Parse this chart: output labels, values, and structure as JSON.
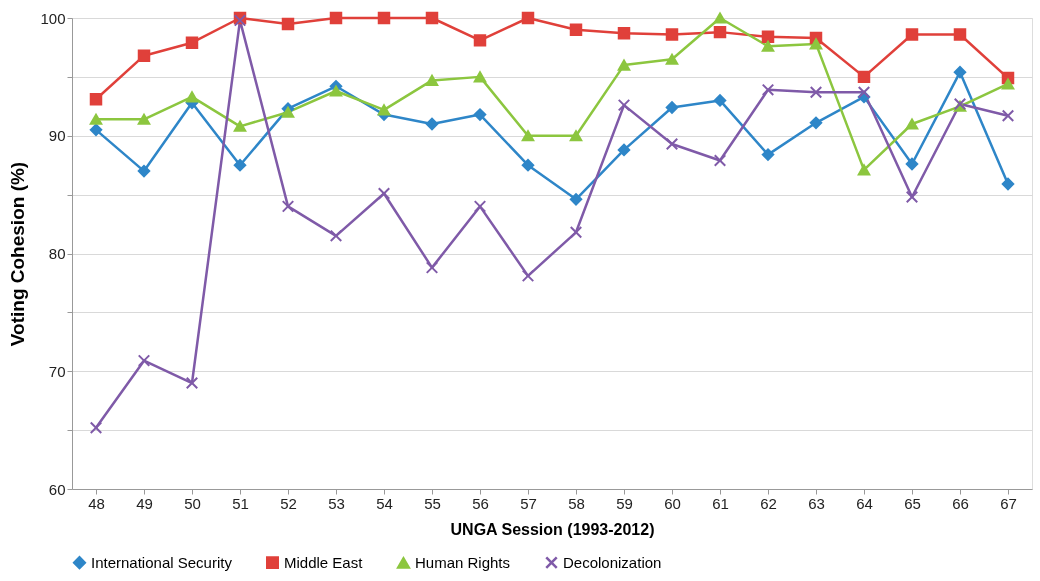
{
  "chart_data": {
    "type": "line",
    "xlabel": "UNGA Session (1993-2012)",
    "ylabel": "Voting  Cohesion (%)",
    "categories": [
      "48",
      "49",
      "50",
      "51",
      "52",
      "53",
      "54",
      "55",
      "56",
      "57",
      "58",
      "59",
      "60",
      "61",
      "62",
      "63",
      "64",
      "65",
      "66",
      "67"
    ],
    "series": [
      {
        "name": "International Security",
        "color": "#2e86c8",
        "marker": "diamond",
        "values": [
          90.5,
          87,
          92.8,
          87.5,
          92.3,
          94.2,
          91.8,
          91,
          91.8,
          87.5,
          84.6,
          88.8,
          92.4,
          93,
          88.4,
          91.1,
          93.3,
          87.6,
          95.4,
          85.9
        ]
      },
      {
        "name": "Middle East",
        "color": "#e0403a",
        "marker": "square",
        "values": [
          93.1,
          96.8,
          97.9,
          100,
          99.5,
          100,
          100,
          100,
          98.1,
          100,
          99,
          98.7,
          98.6,
          98.8,
          98.4,
          98.3,
          95,
          98.6,
          98.6,
          94.9
        ]
      },
      {
        "name": "Human Rights",
        "color": "#8cc63f",
        "marker": "triangle",
        "values": [
          91.4,
          91.4,
          93.3,
          90.8,
          92,
          93.8,
          92.2,
          94.7,
          95,
          90,
          90,
          96,
          96.5,
          100,
          97.6,
          97.8,
          87.1,
          91,
          92.5,
          94.4
        ]
      },
      {
        "name": "Decolonization",
        "color": "#7f5aa8",
        "marker": "cross",
        "values": [
          65.2,
          70.9,
          69,
          99.8,
          84,
          81.5,
          85.1,
          78.8,
          84,
          78.1,
          81.8,
          92.6,
          89.3,
          87.9,
          93.9,
          93.7,
          93.7,
          84.8,
          92.7,
          91.7
        ]
      }
    ],
    "ylim": [
      60,
      100
    ],
    "yticks": [
      60,
      {
        "value": 65,
        "label": null
      },
      70,
      {
        "value": 75,
        "label": null
      },
      80,
      {
        "value": 85,
        "label": null
      },
      90,
      {
        "value": 95,
        "label": null
      },
      100
    ],
    "grid": "y",
    "legend": "bottom",
    "line_style": "solid"
  }
}
